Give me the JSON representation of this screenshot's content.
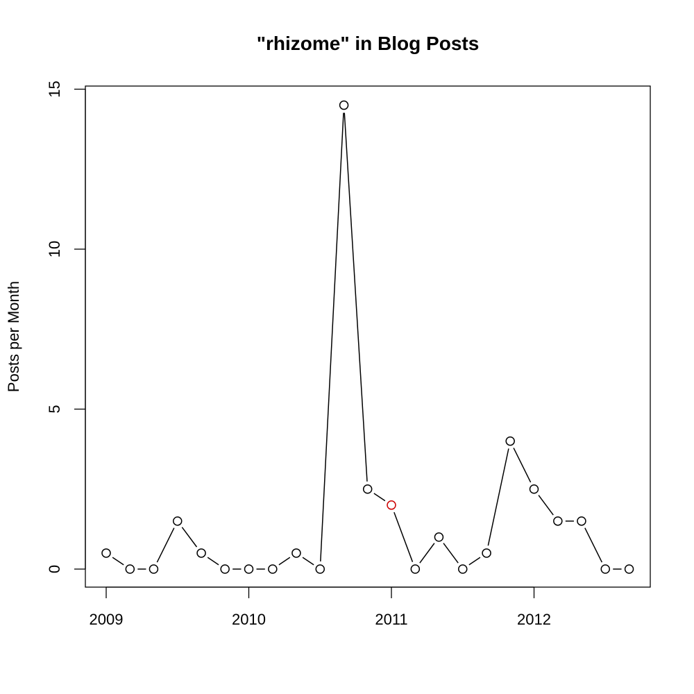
{
  "chart_data": {
    "type": "line",
    "title": "\"rhizome\" in Blog Posts",
    "xlabel": "",
    "ylabel": "Posts per Month",
    "x_ticks": [
      "2009",
      "2010",
      "2011",
      "2012"
    ],
    "y_ticks": [
      "0",
      "5",
      "10",
      "15"
    ],
    "ylim": [
      0,
      15
    ],
    "grid": false,
    "line_color": "#000000",
    "marker_color": "#000000",
    "highlight_color": "#cc0000",
    "series": [
      {
        "x": [
          2009.0,
          2009.167,
          2009.333,
          2009.5,
          2009.667,
          2009.833,
          2010.0,
          2010.167,
          2010.333,
          2010.5,
          2010.667,
          2010.833,
          2011.0,
          2011.167,
          2011.333,
          2011.5,
          2011.667,
          2011.833,
          2012.0,
          2012.167,
          2012.333,
          2012.5,
          2012.667
        ],
        "values": [
          0.5,
          0,
          0,
          1.5,
          0.5,
          0,
          0,
          0,
          0.5,
          0,
          14.5,
          2.5,
          2,
          0,
          1,
          0,
          0.5,
          4,
          2.5,
          1.5,
          1.5,
          0,
          0
        ],
        "highlight_index": 12
      }
    ]
  }
}
